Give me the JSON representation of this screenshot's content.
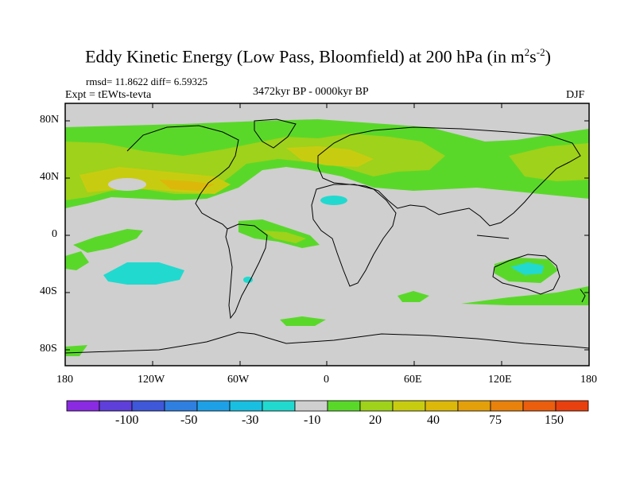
{
  "title": {
    "main": "Eddy Kinetic Energy (Low Pass, Bloomfield) at 200 hPa (in m",
    "sup1": "2",
    "mid": "s",
    "sup2": "-2",
    "end": ")"
  },
  "stats": "rmsd= 11.8622 diff= 6.59325",
  "expt": "Expt = tEWts-tevta",
  "period": "3472kyr BP - 0000kyr BP",
  "season": "DJF",
  "y_ticks": [
    "80N",
    "40N",
    "0",
    "40S",
    "80S"
  ],
  "x_ticks": [
    "180",
    "120W",
    "60W",
    "0",
    "60E",
    "120E",
    "180"
  ],
  "colorbar": {
    "colors": [
      "#8a2be2",
      "#5f3fd9",
      "#3f57d9",
      "#2f7fe0",
      "#1ea0e6",
      "#19bfe0",
      "#22d9cf",
      "#cfcfcf",
      "#5ad82a",
      "#9fd21a",
      "#c8cc10",
      "#dcb80a",
      "#e4a00a",
      "#e8820c",
      "#ea5e0e",
      "#e8400e"
    ],
    "labels": [
      "-100",
      "-50",
      "-30",
      "-10",
      "20",
      "40",
      "75",
      "150"
    ]
  }
}
